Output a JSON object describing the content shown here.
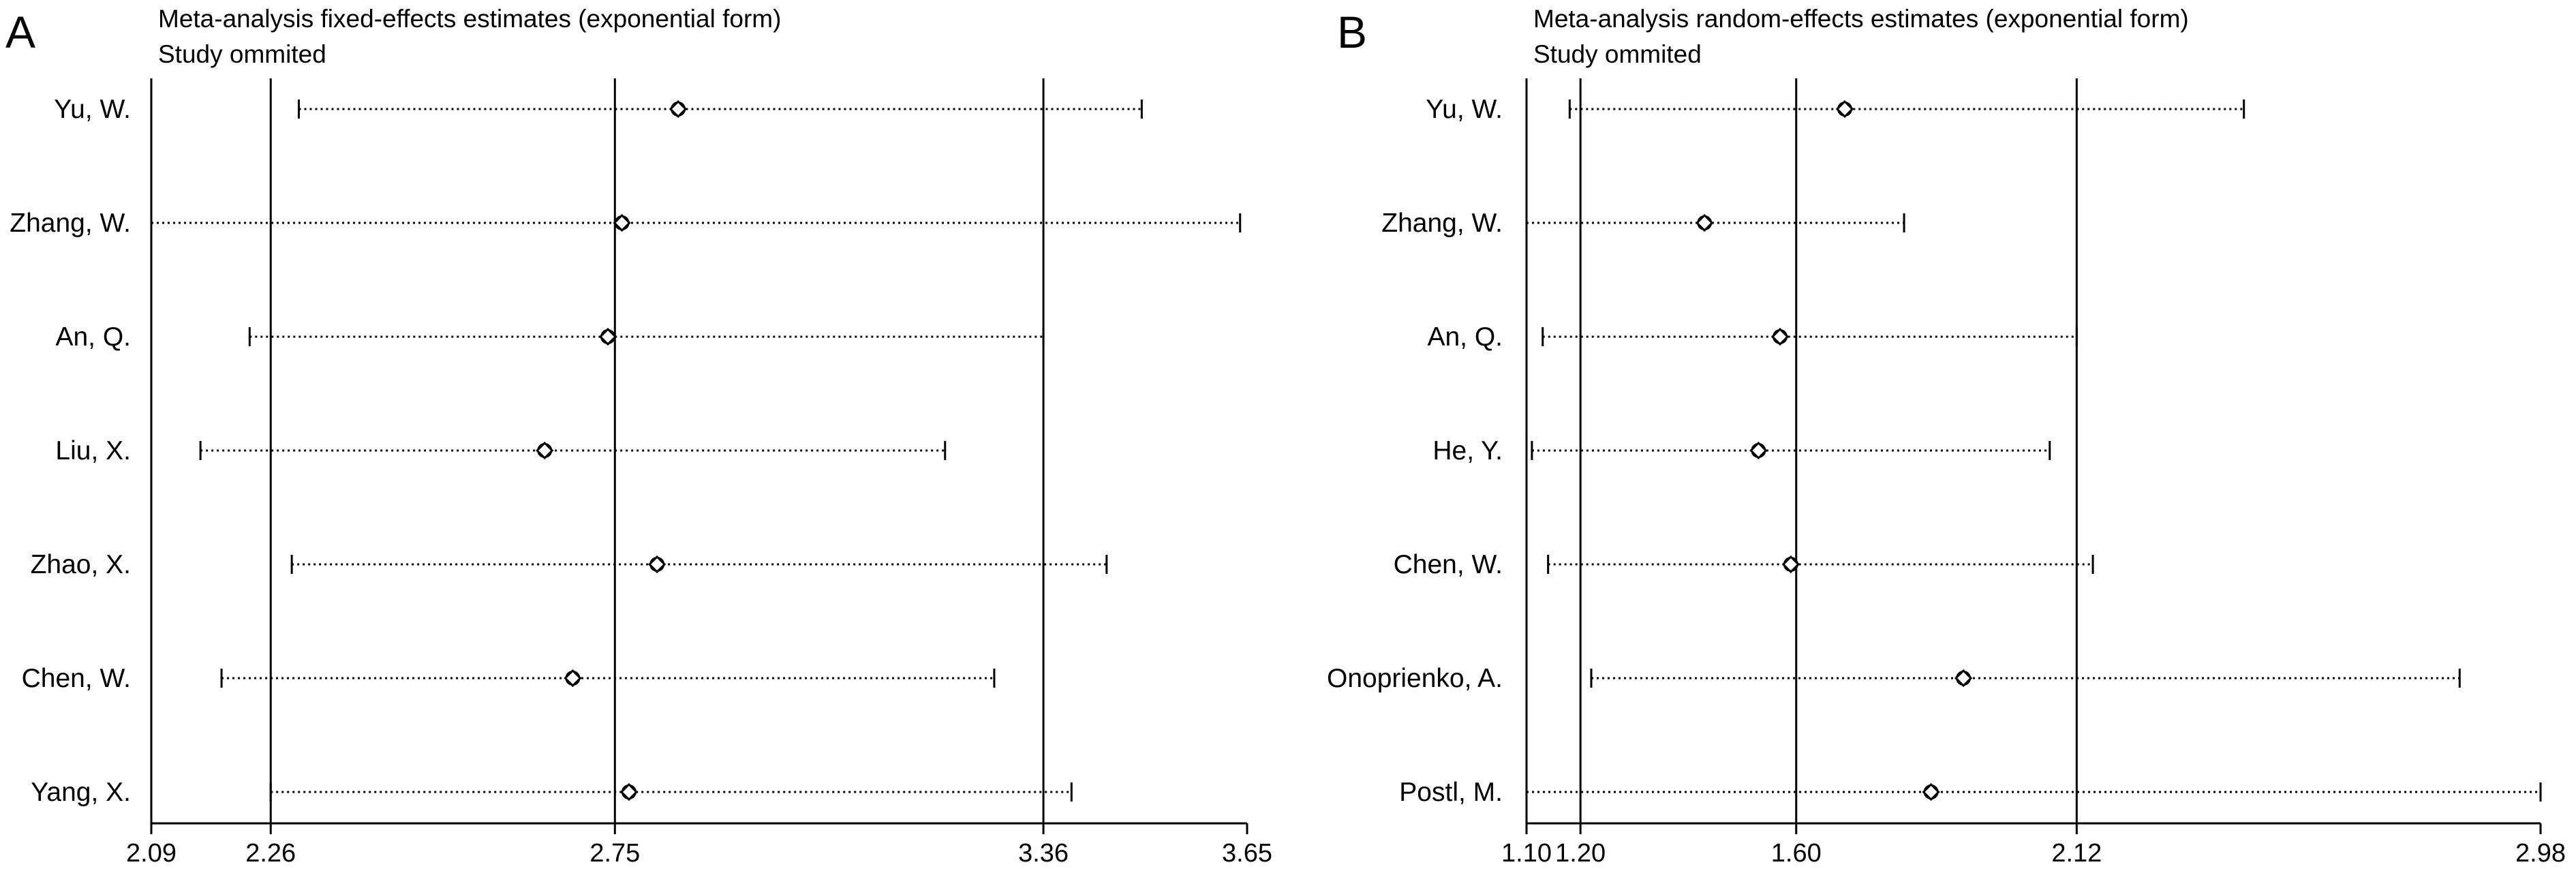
{
  "colors": {
    "line": "#000000",
    "background": "#ffffff"
  },
  "chart_data": [
    {
      "panel_letter": "A",
      "type": "forest",
      "title": "Meta-analysis fixed-effects estimates (exponential form)",
      "subtitle": "Study ommited",
      "x_ticks": [
        2.09,
        2.26,
        2.75,
        3.36,
        3.65
      ],
      "xlim": [
        2.09,
        3.65
      ],
      "reference_lines": [
        2.26,
        2.75,
        3.36
      ],
      "studies": [
        {
          "label": "Yu, W.",
          "estimate": 2.84,
          "lower": 2.3,
          "upper": 3.5
        },
        {
          "label": "Zhang, W.",
          "estimate": 2.76,
          "lower": 2.09,
          "upper": 3.64
        },
        {
          "label": "An, Q.",
          "estimate": 2.74,
          "lower": 2.23,
          "upper": 3.36
        },
        {
          "label": "Liu, X.",
          "estimate": 2.65,
          "lower": 2.16,
          "upper": 3.22
        },
        {
          "label": "Zhao, X.",
          "estimate": 2.81,
          "lower": 2.29,
          "upper": 3.45
        },
        {
          "label": "Chen, W.",
          "estimate": 2.69,
          "lower": 2.19,
          "upper": 3.29
        },
        {
          "label": "Yang, X.",
          "estimate": 2.77,
          "lower": 2.26,
          "upper": 3.4
        }
      ]
    },
    {
      "panel_letter": "B",
      "type": "forest",
      "title": "Meta-analysis random-effects estimates (exponential form)",
      "subtitle": "Study ommited",
      "x_ticks": [
        1.1,
        1.2,
        1.6,
        2.12,
        2.98
      ],
      "xlim": [
        1.1,
        2.98
      ],
      "reference_lines": [
        1.2,
        1.6,
        2.12
      ],
      "studies": [
        {
          "label": "Yu, W.",
          "estimate": 1.69,
          "lower": 1.18,
          "upper": 2.43
        },
        {
          "label": "Zhang, W.",
          "estimate": 1.43,
          "lower": 1.1,
          "upper": 1.8
        },
        {
          "label": "An, Q.",
          "estimate": 1.57,
          "lower": 1.13,
          "upper": 2.12
        },
        {
          "label": "He, Y.",
          "estimate": 1.53,
          "lower": 1.11,
          "upper": 2.07
        },
        {
          "label": "Chen, W.",
          "estimate": 1.59,
          "lower": 1.14,
          "upper": 2.15
        },
        {
          "label": "Onoprienko, A.",
          "estimate": 1.91,
          "lower": 1.22,
          "upper": 2.83
        },
        {
          "label": "Postl, M.",
          "estimate": 1.85,
          "lower": 1.1,
          "upper": 2.98
        }
      ]
    }
  ]
}
